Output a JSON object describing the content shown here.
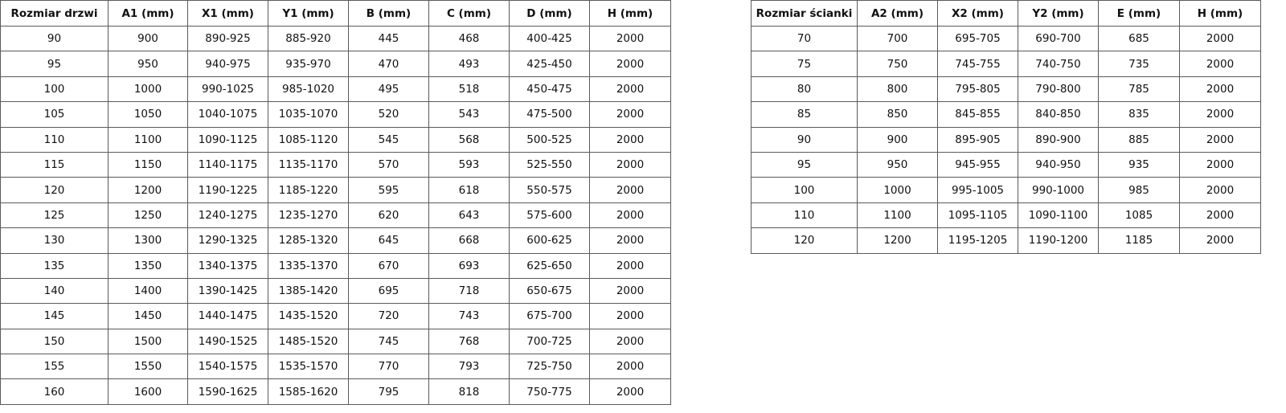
{
  "doors_table": {
    "headers": [
      "Rozmiar drzwi",
      "A1 (mm)",
      "X1 (mm)",
      "Y1 (mm)",
      "B (mm)",
      "C (mm)",
      "D (mm)",
      "H (mm)"
    ],
    "rows": [
      [
        "90",
        "900",
        "890-925",
        "885-920",
        "445",
        "468",
        "400-425",
        "2000"
      ],
      [
        "95",
        "950",
        "940-975",
        "935-970",
        "470",
        "493",
        "425-450",
        "2000"
      ],
      [
        "100",
        "1000",
        "990-1025",
        "985-1020",
        "495",
        "518",
        "450-475",
        "2000"
      ],
      [
        "105",
        "1050",
        "1040-1075",
        "1035-1070",
        "520",
        "543",
        "475-500",
        "2000"
      ],
      [
        "110",
        "1100",
        "1090-1125",
        "1085-1120",
        "545",
        "568",
        "500-525",
        "2000"
      ],
      [
        "115",
        "1150",
        "1140-1175",
        "1135-1170",
        "570",
        "593",
        "525-550",
        "2000"
      ],
      [
        "120",
        "1200",
        "1190-1225",
        "1185-1220",
        "595",
        "618",
        "550-575",
        "2000"
      ],
      [
        "125",
        "1250",
        "1240-1275",
        "1235-1270",
        "620",
        "643",
        "575-600",
        "2000"
      ],
      [
        "130",
        "1300",
        "1290-1325",
        "1285-1320",
        "645",
        "668",
        "600-625",
        "2000"
      ],
      [
        "135",
        "1350",
        "1340-1375",
        "1335-1370",
        "670",
        "693",
        "625-650",
        "2000"
      ],
      [
        "140",
        "1400",
        "1390-1425",
        "1385-1420",
        "695",
        "718",
        "650-675",
        "2000"
      ],
      [
        "145",
        "1450",
        "1440-1475",
        "1435-1520",
        "720",
        "743",
        "675-700",
        "2000"
      ],
      [
        "150",
        "1500",
        "1490-1525",
        "1485-1520",
        "745",
        "768",
        "700-725",
        "2000"
      ],
      [
        "155",
        "1550",
        "1540-1575",
        "1535-1570",
        "770",
        "793",
        "725-750",
        "2000"
      ],
      [
        "160",
        "1600",
        "1590-1625",
        "1585-1620",
        "795",
        "818",
        "750-775",
        "2000"
      ]
    ]
  },
  "wall_table": {
    "headers": [
      "Rozmiar ścianki",
      "A2 (mm)",
      "X2 (mm)",
      "Y2 (mm)",
      "E (mm)",
      "H (mm)"
    ],
    "rows": [
      [
        "70",
        "700",
        "695-705",
        "690-700",
        "685",
        "2000"
      ],
      [
        "75",
        "750",
        "745-755",
        "740-750",
        "735",
        "2000"
      ],
      [
        "80",
        "800",
        "795-805",
        "790-800",
        "785",
        "2000"
      ],
      [
        "85",
        "850",
        "845-855",
        "840-850",
        "835",
        "2000"
      ],
      [
        "90",
        "900",
        "895-905",
        "890-900",
        "885",
        "2000"
      ],
      [
        "95",
        "950",
        "945-955",
        "940-950",
        "935",
        "2000"
      ],
      [
        "100",
        "1000",
        "995-1005",
        "990-1000",
        "985",
        "2000"
      ],
      [
        "110",
        "1100",
        "1095-1105",
        "1090-1100",
        "1085",
        "2000"
      ],
      [
        "120",
        "1200",
        "1195-1205",
        "1190-1200",
        "1185",
        "2000"
      ]
    ]
  }
}
